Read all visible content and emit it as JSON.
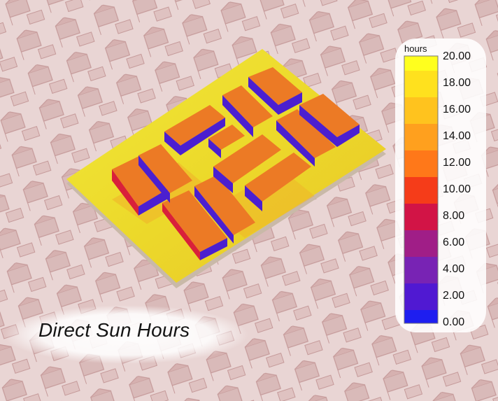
{
  "caption": "Direct Sun Hours",
  "legend": {
    "unit": "hours",
    "ticks": [
      "20.00",
      "18.00",
      "16.00",
      "14.00",
      "12.00",
      "10.00",
      "8.00",
      "6.00",
      "4.00",
      "2.00",
      "0.00"
    ],
    "colors": [
      "#ffff1e",
      "#ffe11e",
      "#ffc31e",
      "#ffa01e",
      "#ff7819",
      "#f53c19",
      "#d21446",
      "#a01e87",
      "#7823b4",
      "#5019d2",
      "#1e1ef0"
    ]
  },
  "colors": {
    "background": "#e9d5d4",
    "ground_plate": "#ecd92a",
    "roof": "#ec7a25",
    "shaded_facade": "#4b1fd0",
    "context_buildings": "#b98686"
  }
}
